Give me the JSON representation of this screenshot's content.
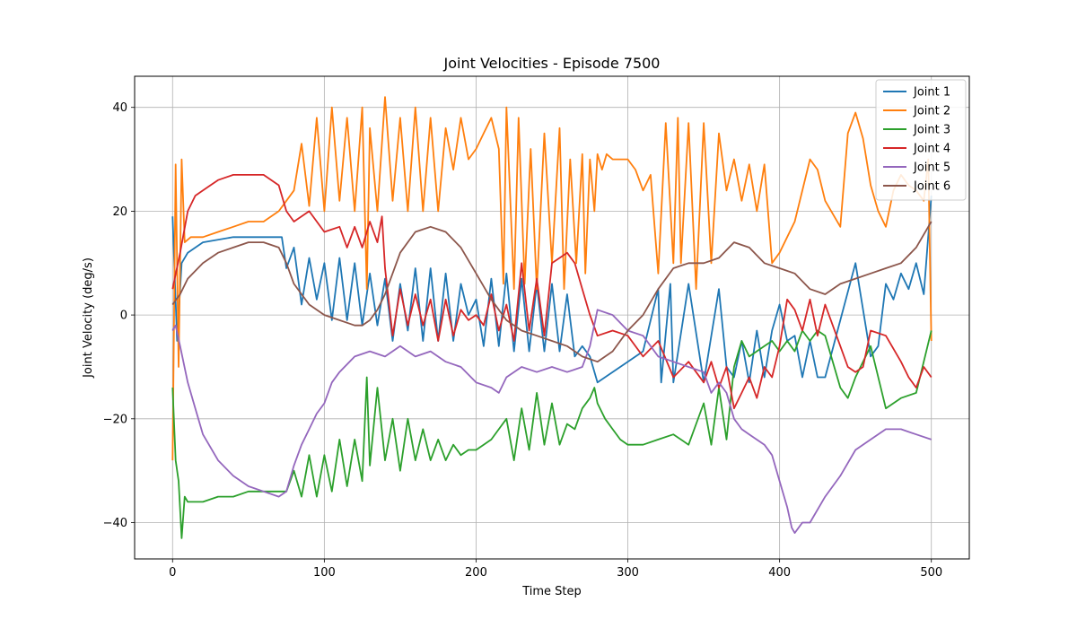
{
  "chart_data": {
    "type": "line",
    "title": "Joint Velocities - Episode 7500",
    "xlabel": "Time Step",
    "ylabel": "Joint Velocity (deg/s)",
    "xlim": [
      -25,
      525
    ],
    "ylim": [
      -47,
      46
    ],
    "xticks": [
      0,
      100,
      200,
      300,
      400,
      500
    ],
    "yticks": [
      -40,
      -20,
      0,
      20,
      40
    ],
    "grid": true,
    "legend_position": "top-right",
    "series": [
      {
        "name": "Joint 1",
        "color": "#1f77b4",
        "x": [
          0,
          3,
          6,
          10,
          20,
          40,
          60,
          72,
          75,
          80,
          85,
          90,
          95,
          100,
          105,
          110,
          115,
          120,
          125,
          130,
          135,
          140,
          145,
          150,
          155,
          160,
          165,
          170,
          175,
          180,
          185,
          190,
          195,
          200,
          205,
          210,
          215,
          220,
          225,
          230,
          235,
          240,
          245,
          250,
          255,
          260,
          265,
          270,
          275,
          280,
          290,
          300,
          310,
          320,
          322,
          328,
          330,
          340,
          350,
          360,
          365,
          370,
          375,
          380,
          385,
          390,
          395,
          400,
          405,
          410,
          415,
          420,
          425,
          430,
          440,
          450,
          460,
          465,
          470,
          475,
          480,
          485,
          490,
          495,
          500
        ],
        "y": [
          19,
          -5,
          10,
          12,
          14,
          15,
          15,
          15,
          9,
          13,
          2,
          11,
          3,
          10,
          -1,
          11,
          -1,
          10,
          -2,
          8,
          -2,
          7,
          -5,
          6,
          -3,
          9,
          -5,
          9,
          -5,
          8,
          -5,
          6,
          0,
          3,
          -6,
          7,
          -6,
          8,
          -7,
          7,
          -7,
          6,
          -7,
          6,
          -7,
          4,
          -8,
          -6,
          -8,
          -13,
          -11,
          -9,
          -7,
          5,
          -13,
          6,
          -13,
          6,
          -13,
          5,
          -10,
          -12,
          -5,
          -13,
          -3,
          -12,
          -3,
          2,
          -5,
          -4,
          -12,
          -5,
          -12,
          -12,
          -1,
          10,
          -8,
          -6,
          6,
          3,
          8,
          5,
          10,
          4,
          23
        ]
      },
      {
        "name": "Joint 2",
        "color": "#ff7f0e",
        "x": [
          0,
          2,
          4,
          6,
          8,
          12,
          20,
          30,
          40,
          50,
          60,
          70,
          75,
          80,
          85,
          90,
          95,
          100,
          105,
          110,
          115,
          120,
          125,
          128,
          130,
          135,
          140,
          145,
          150,
          155,
          160,
          165,
          170,
          175,
          180,
          185,
          190,
          195,
          200,
          205,
          210,
          215,
          218,
          220,
          225,
          228,
          232,
          236,
          240,
          245,
          250,
          255,
          258,
          262,
          266,
          270,
          272,
          275,
          278,
          280,
          283,
          286,
          290,
          300,
          305,
          310,
          315,
          320,
          325,
          330,
          333,
          335,
          340,
          345,
          350,
          355,
          360,
          365,
          370,
          375,
          380,
          385,
          390,
          395,
          400,
          410,
          420,
          425,
          430,
          440,
          445,
          450,
          455,
          460,
          465,
          470,
          475,
          480,
          485,
          490,
          495,
          498,
          500
        ],
        "y": [
          -28,
          29,
          -10,
          30,
          14,
          15,
          15,
          16,
          17,
          18,
          18,
          20,
          22,
          24,
          33,
          21,
          38,
          20,
          40,
          22,
          38,
          20,
          40,
          5,
          36,
          20,
          42,
          22,
          38,
          20,
          40,
          20,
          38,
          20,
          36,
          28,
          38,
          30,
          32,
          35,
          38,
          32,
          6,
          40,
          5,
          38,
          6,
          32,
          5,
          35,
          10,
          36,
          5,
          30,
          10,
          31,
          8,
          30,
          20,
          31,
          28,
          31,
          30,
          30,
          28,
          24,
          27,
          8,
          37,
          10,
          38,
          10,
          37,
          5,
          37,
          10,
          35,
          24,
          30,
          22,
          29,
          20,
          29,
          10,
          12,
          18,
          30,
          28,
          22,
          17,
          35,
          39,
          34,
          25,
          20,
          17,
          24,
          27,
          25,
          24,
          22,
          30,
          -5
        ]
      },
      {
        "name": "Joint 3",
        "color": "#2ca02c",
        "x": [
          0,
          2,
          4,
          6,
          8,
          10,
          15,
          20,
          30,
          40,
          50,
          60,
          70,
          75,
          80,
          85,
          90,
          95,
          100,
          105,
          110,
          115,
          120,
          125,
          128,
          130,
          135,
          140,
          145,
          150,
          155,
          160,
          165,
          170,
          175,
          180,
          185,
          190,
          195,
          200,
          205,
          210,
          215,
          220,
          225,
          230,
          235,
          240,
          245,
          250,
          255,
          260,
          265,
          270,
          275,
          278,
          280,
          285,
          290,
          295,
          300,
          310,
          320,
          330,
          340,
          350,
          355,
          360,
          365,
          370,
          375,
          380,
          390,
          395,
          400,
          405,
          410,
          415,
          420,
          425,
          430,
          440,
          445,
          450,
          460,
          470,
          480,
          490,
          500
        ],
        "y": [
          -14,
          -28,
          -32,
          -43,
          -35,
          -36,
          -36,
          -36,
          -35,
          -35,
          -34,
          -34,
          -34,
          -34,
          -30,
          -35,
          -27,
          -35,
          -27,
          -34,
          -24,
          -33,
          -24,
          -32,
          -12,
          -29,
          -14,
          -28,
          -20,
          -30,
          -20,
          -28,
          -22,
          -28,
          -24,
          -28,
          -25,
          -27,
          -26,
          -26,
          -25,
          -24,
          -22,
          -20,
          -28,
          -18,
          -26,
          -15,
          -25,
          -17,
          -25,
          -21,
          -22,
          -18,
          -16,
          -14,
          -17,
          -20,
          -22,
          -24,
          -25,
          -25,
          -24,
          -23,
          -25,
          -17,
          -25,
          -14,
          -24,
          -10,
          -5,
          -8,
          -6,
          -5,
          -7,
          -5,
          -7,
          -3,
          -5,
          -3,
          -4,
          -14,
          -16,
          -12,
          -6,
          -18,
          -16,
          -15,
          -3
        ]
      },
      {
        "name": "Joint 4",
        "color": "#d62728",
        "x": [
          0,
          5,
          10,
          15,
          20,
          25,
          30,
          40,
          50,
          60,
          70,
          75,
          80,
          90,
          100,
          110,
          115,
          120,
          125,
          130,
          135,
          138,
          140,
          145,
          150,
          155,
          160,
          165,
          170,
          175,
          180,
          185,
          190,
          195,
          200,
          205,
          210,
          215,
          220,
          225,
          230,
          235,
          240,
          245,
          250,
          255,
          260,
          265,
          270,
          275,
          280,
          290,
          300,
          310,
          320,
          330,
          340,
          350,
          355,
          360,
          365,
          370,
          375,
          380,
          385,
          390,
          395,
          400,
          405,
          410,
          415,
          420,
          425,
          430,
          440,
          445,
          450,
          455,
          460,
          470,
          480,
          485,
          490,
          495,
          500
        ],
        "y": [
          5,
          12,
          20,
          23,
          24,
          25,
          26,
          27,
          27,
          27,
          25,
          20,
          18,
          20,
          16,
          17,
          13,
          17,
          13,
          18,
          14,
          19,
          9,
          -4,
          5,
          -2,
          4,
          -2,
          3,
          -5,
          3,
          -4,
          1,
          -1,
          0,
          -2,
          4,
          -3,
          2,
          -5,
          10,
          -3,
          7,
          -4,
          10,
          11,
          12,
          10,
          5,
          0,
          -4,
          -3,
          -4,
          -8,
          -5,
          -12,
          -9,
          -13,
          -9,
          -14,
          -10,
          -18,
          -15,
          -12,
          -16,
          -10,
          -12,
          -6,
          3,
          1,
          -3,
          3,
          -4,
          2,
          -6,
          -10,
          -11,
          -10,
          -3,
          -4,
          -9,
          -12,
          -14,
          -10,
          -12
        ]
      },
      {
        "name": "Joint 5",
        "color": "#9467bd",
        "x": [
          0,
          2,
          5,
          10,
          15,
          20,
          30,
          40,
          50,
          60,
          70,
          75,
          80,
          85,
          90,
          95,
          100,
          105,
          110,
          120,
          130,
          140,
          150,
          160,
          170,
          180,
          190,
          200,
          210,
          215,
          220,
          230,
          240,
          250,
          260,
          270,
          275,
          280,
          290,
          300,
          310,
          320,
          330,
          340,
          350,
          355,
          360,
          365,
          370,
          375,
          380,
          390,
          395,
          400,
          405,
          408,
          410,
          415,
          420,
          430,
          440,
          450,
          460,
          470,
          480,
          490,
          500
        ],
        "y": [
          -3,
          -2,
          -6,
          -13,
          -18,
          -23,
          -28,
          -31,
          -33,
          -34,
          -35,
          -34,
          -29,
          -25,
          -22,
          -19,
          -17,
          -13,
          -11,
          -8,
          -7,
          -8,
          -6,
          -8,
          -7,
          -9,
          -10,
          -13,
          -14,
          -15,
          -12,
          -10,
          -11,
          -10,
          -11,
          -10,
          -6,
          1,
          0,
          -3,
          -4,
          -8,
          -9,
          -10,
          -11,
          -15,
          -13,
          -15,
          -20,
          -22,
          -23,
          -25,
          -27,
          -32,
          -37,
          -41,
          -42,
          -40,
          -40,
          -35,
          -31,
          -26,
          -24,
          -22,
          -22,
          -23,
          -24
        ]
      },
      {
        "name": "Joint 6",
        "color": "#8c564b",
        "x": [
          0,
          5,
          10,
          20,
          30,
          40,
          50,
          60,
          70,
          75,
          80,
          90,
          100,
          110,
          120,
          125,
          130,
          135,
          140,
          150,
          160,
          170,
          180,
          190,
          200,
          210,
          220,
          230,
          240,
          250,
          260,
          270,
          280,
          290,
          300,
          310,
          320,
          330,
          340,
          350,
          360,
          370,
          380,
          390,
          400,
          410,
          420,
          430,
          440,
          450,
          460,
          470,
          480,
          490,
          500
        ],
        "y": [
          2,
          4,
          7,
          10,
          12,
          13,
          14,
          14,
          13,
          10,
          6,
          2,
          0,
          -1,
          -2,
          -2,
          -1,
          1,
          4,
          12,
          16,
          17,
          16,
          13,
          8,
          3,
          -1,
          -3,
          -4,
          -5,
          -6,
          -8,
          -9,
          -7,
          -3,
          0,
          5,
          9,
          10,
          10,
          11,
          14,
          13,
          10,
          9,
          8,
          5,
          4,
          6,
          7,
          8,
          9,
          10,
          13,
          18
        ]
      }
    ]
  }
}
